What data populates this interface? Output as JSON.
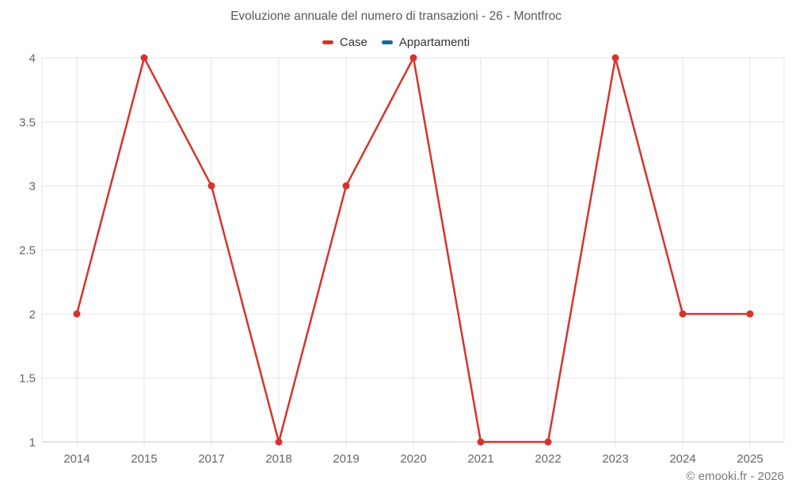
{
  "chart": {
    "title": "Evoluzione annuale del numero di transazioni - 26 - Montfroc"
  },
  "chart_data": {
    "type": "line",
    "title": "Evoluzione annuale del numero di transazioni - 26 - Montfroc",
    "categories": [
      "2014",
      "2015",
      "2017",
      "2018",
      "2019",
      "2020",
      "2021",
      "2022",
      "2023",
      "2024",
      "2025"
    ],
    "series": [
      {
        "name": "Case",
        "color": "#d5342c",
        "values": [
          2,
          4,
          3,
          1,
          3,
          4,
          1,
          1,
          4,
          2,
          2
        ]
      },
      {
        "name": "Appartamenti",
        "color": "#17689e",
        "values": []
      }
    ],
    "xlabel": "",
    "ylabel": "",
    "ylim": [
      1,
      4
    ],
    "yticks": [
      1,
      1.5,
      2,
      2.5,
      3,
      3.5,
      4
    ],
    "grid": true,
    "legend_position": "top",
    "colors": {
      "gridline": "#e6e6e6",
      "axis_line": "#c9c9c9",
      "axis_text": "#666666"
    }
  },
  "footer": {
    "copyright": "© emooki.fr - 2026"
  }
}
